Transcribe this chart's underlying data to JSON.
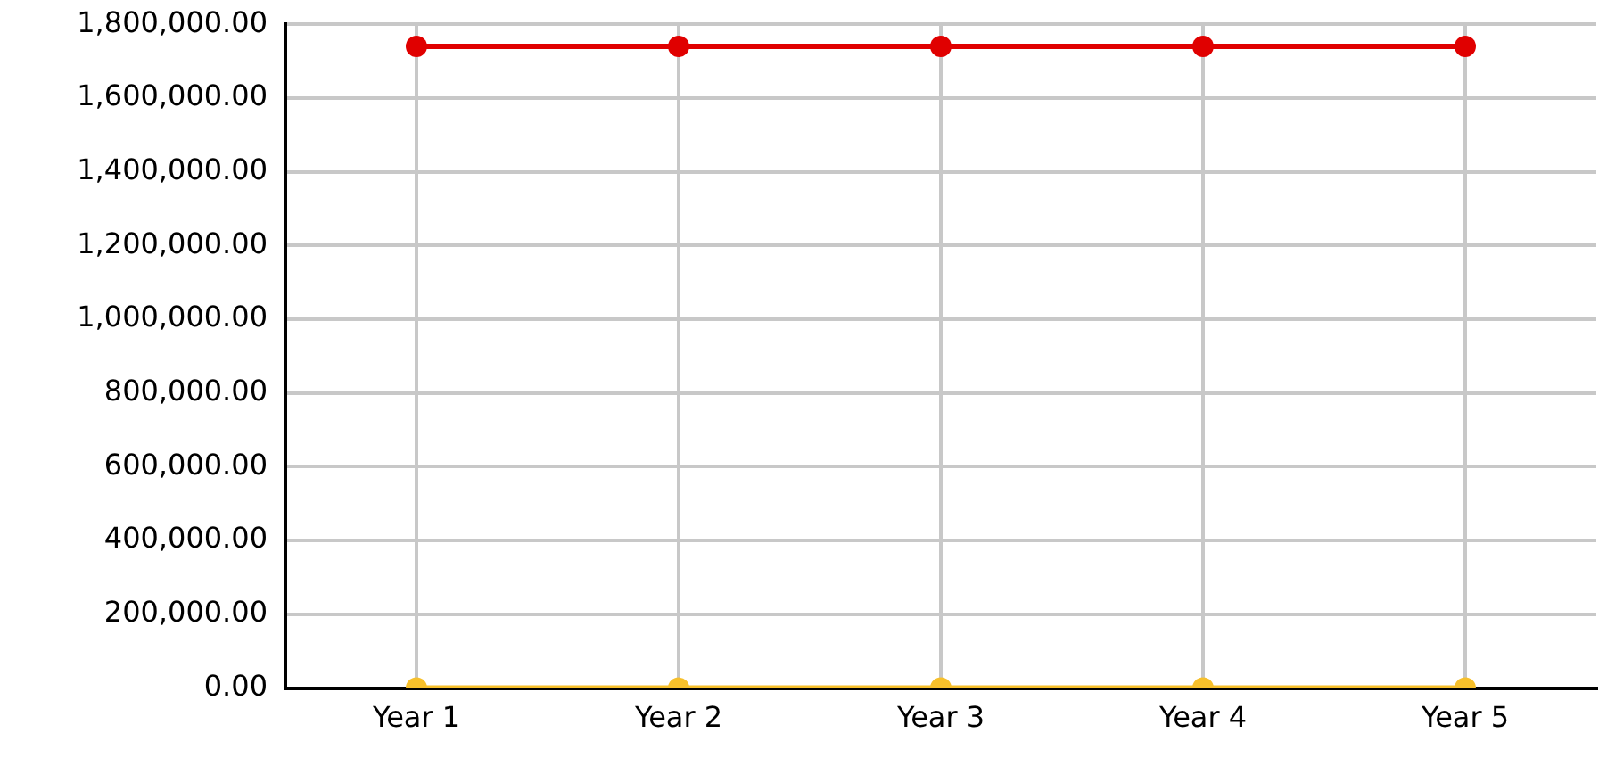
{
  "chart_data": {
    "type": "line",
    "categories": [
      "Year 1",
      "Year 2",
      "Year 3",
      "Year 4",
      "Year 5"
    ],
    "series": [
      {
        "color": "#e00000",
        "values": [
          1740000,
          1740000,
          1740000,
          1740000,
          1740000
        ]
      },
      {
        "color": "#f7c02b",
        "values": [
          0,
          0,
          0,
          0,
          0
        ]
      }
    ],
    "ylim": [
      0,
      1800000
    ],
    "yticks": [
      {
        "value": 0,
        "label": "0.00"
      },
      {
        "value": 200000,
        "label": "200,000.00"
      },
      {
        "value": 400000,
        "label": "400,000.00"
      },
      {
        "value": 600000,
        "label": "600,000.00"
      },
      {
        "value": 800000,
        "label": "800,000.00"
      },
      {
        "value": 1000000,
        "label": "1,000,000.00"
      },
      {
        "value": 1200000,
        "label": "1,200,000.00"
      },
      {
        "value": 1400000,
        "label": "1,400,000.00"
      },
      {
        "value": 1600000,
        "label": "1,600,000.00"
      },
      {
        "value": 1800000,
        "label": "1,800,000.00"
      }
    ],
    "grid": true,
    "legend": false,
    "marker": "circle",
    "line_style": "solid"
  }
}
